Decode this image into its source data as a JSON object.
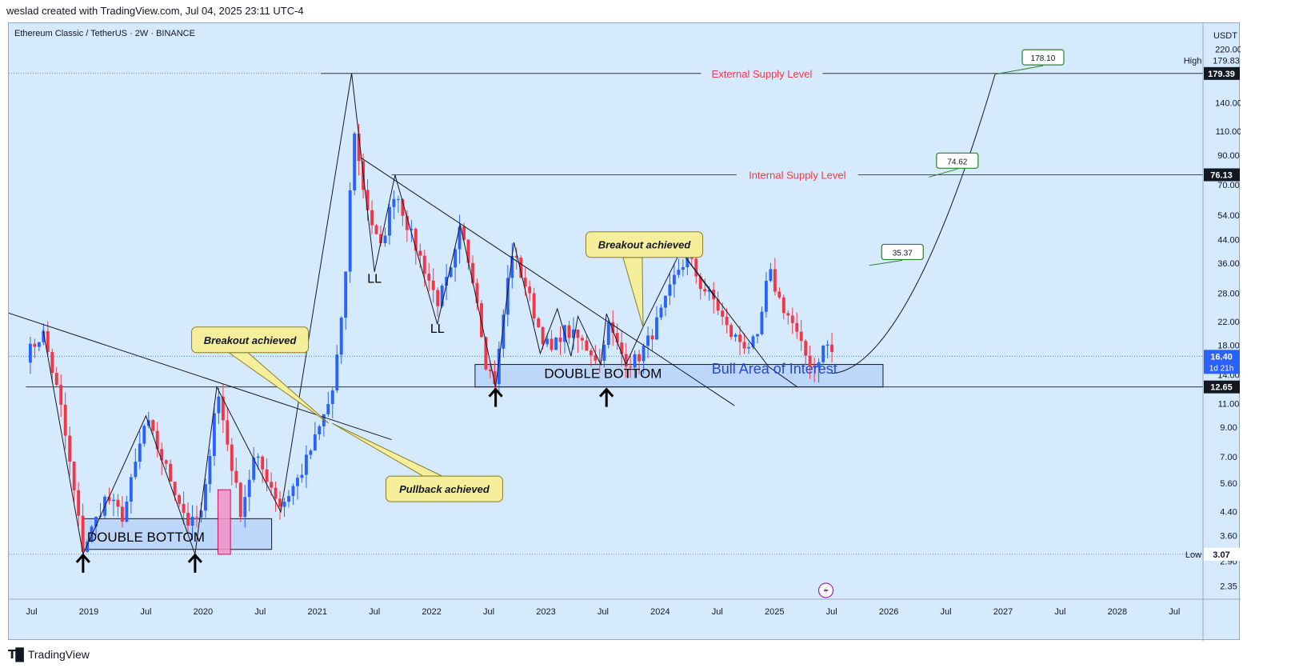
{
  "header": {
    "attribution": "weslad created with TradingView.com, Jul 04, 2025 23:11 UTC-4"
  },
  "footer": {
    "brand": "TradingView",
    "logo_icon": "tradingview-logo-icon"
  },
  "chart_data": {
    "type": "candlestick",
    "symbol_line": "Ethereum Classic / TetherUS · 2W · BINANCE",
    "currency": "USDT",
    "y_scale": "log",
    "ylim": [
      2.1,
      260
    ],
    "xlim": [
      2018.3,
      2028.75
    ],
    "price_ticks": [
      220,
      140,
      110,
      90,
      70,
      54,
      44,
      36,
      28,
      22,
      18,
      14,
      11,
      9,
      7,
      5.6,
      4.4,
      3.6,
      2.9,
      2.35
    ],
    "price_tick_labels": [
      "220.00",
      "140.00",
      "110.00",
      "90.00",
      "70.00",
      "54.00",
      "44.00",
      "36.00",
      "28.00",
      "22.00",
      "18.00",
      "14.00",
      "11.00",
      "9.00",
      "7.00",
      "5.60",
      "4.40",
      "3.60",
      "2.90",
      "2.35"
    ],
    "time_ticks": [
      {
        "label": "Jul",
        "t": 2018.5
      },
      {
        "label": "2019",
        "t": 2019.0
      },
      {
        "label": "Jul",
        "t": 2019.5
      },
      {
        "label": "2020",
        "t": 2020.0
      },
      {
        "label": "Jul",
        "t": 2020.5
      },
      {
        "label": "2021",
        "t": 2021.0
      },
      {
        "label": "Jul",
        "t": 2021.5
      },
      {
        "label": "2022",
        "t": 2022.0
      },
      {
        "label": "Jul",
        "t": 2022.5
      },
      {
        "label": "2023",
        "t": 2023.0
      },
      {
        "label": "Jul",
        "t": 2023.5
      },
      {
        "label": "2024",
        "t": 2024.0
      },
      {
        "label": "Jul",
        "t": 2024.5
      },
      {
        "label": "2025",
        "t": 2025.0
      },
      {
        "label": "Jul",
        "t": 2025.5
      },
      {
        "label": "2026",
        "t": 2026.0
      },
      {
        "label": "Jul",
        "t": 2026.5
      },
      {
        "label": "2027",
        "t": 2027.0
      },
      {
        "label": "Jul",
        "t": 2027.5
      },
      {
        "label": "2028",
        "t": 2028.0
      },
      {
        "label": "Jul",
        "t": 2028.5
      }
    ],
    "price_markers": {
      "high": {
        "label": "High",
        "value": 179.83,
        "text": "179.83"
      },
      "low": {
        "label": "Low",
        "value": 3.07,
        "text": "3.07"
      },
      "last": {
        "value": 16.4,
        "text": "16.40",
        "countdown": "1d 21h",
        "color": "#2962ff"
      },
      "level_179": {
        "value": 179.39,
        "text": "179.39"
      },
      "level_76": {
        "value": 76.13,
        "text": "76.13"
      },
      "level_12": {
        "value": 12.65,
        "text": "12.65"
      }
    },
    "levels": [
      {
        "name": "External Supply Level",
        "value": 179.39,
        "from": 2021.03,
        "color": "#f23645"
      },
      {
        "name": "Internal Supply Level",
        "value": 76.13,
        "from": 2021.65,
        "color": "#f23645"
      }
    ],
    "colors": {
      "up": "#2962ff",
      "down": "#f23645",
      "background": "#d6eafd",
      "zone": "#a9c7f7",
      "pink": "#f48fc8"
    },
    "anchors": [
      [
        2018.45,
        16.5
      ],
      [
        2018.6,
        20.0
      ],
      [
        2018.75,
        11.0
      ],
      [
        2018.95,
        3.2
      ],
      [
        2019.15,
        5.0
      ],
      [
        2019.3,
        4.2
      ],
      [
        2019.5,
        9.6
      ],
      [
        2019.7,
        6.0
      ],
      [
        2019.88,
        3.9
      ],
      [
        2020.0,
        4.4
      ],
      [
        2020.12,
        12.6
      ],
      [
        2020.25,
        6.5
      ],
      [
        2020.33,
        4.4
      ],
      [
        2020.45,
        7.0
      ],
      [
        2020.55,
        6.0
      ],
      [
        2020.68,
        4.6
      ],
      [
        2020.85,
        6.0
      ],
      [
        2021.0,
        8.5
      ],
      [
        2021.13,
        12.0
      ],
      [
        2021.23,
        25.0
      ],
      [
        2021.32,
        115.0
      ],
      [
        2021.38,
        75.0
      ],
      [
        2021.45,
        55.0
      ],
      [
        2021.55,
        40.0
      ],
      [
        2021.68,
        68.0
      ],
      [
        2021.8,
        48.0
      ],
      [
        2021.92,
        36.0
      ],
      [
        2022.05,
        26.0
      ],
      [
        2022.18,
        34.0
      ],
      [
        2022.25,
        48.0
      ],
      [
        2022.38,
        30.0
      ],
      [
        2022.48,
        15.0
      ],
      [
        2022.56,
        13.2
      ],
      [
        2022.62,
        22.0
      ],
      [
        2022.7,
        40.0
      ],
      [
        2022.82,
        30.0
      ],
      [
        2022.95,
        20.0
      ],
      [
        2023.05,
        17.0
      ],
      [
        2023.15,
        20.5
      ],
      [
        2023.28,
        19.0
      ],
      [
        2023.4,
        17.0
      ],
      [
        2023.48,
        15.5
      ],
      [
        2023.53,
        22.0
      ],
      [
        2023.65,
        17.0
      ],
      [
        2023.72,
        15.5
      ],
      [
        2023.8,
        16.0
      ],
      [
        2023.92,
        19.5
      ],
      [
        2024.05,
        26.0
      ],
      [
        2024.15,
        34.0
      ],
      [
        2024.25,
        38.0
      ],
      [
        2024.35,
        30.0
      ],
      [
        2024.48,
        26.0
      ],
      [
        2024.6,
        20.0
      ],
      [
        2024.75,
        18.0
      ],
      [
        2024.85,
        18.5
      ],
      [
        2024.95,
        34.0
      ],
      [
        2025.05,
        26.0
      ],
      [
        2025.15,
        22.0
      ],
      [
        2025.25,
        17.0
      ],
      [
        2025.35,
        15.0
      ],
      [
        2025.45,
        18.5
      ],
      [
        2025.52,
        16.4
      ]
    ],
    "annotations": {
      "callouts": [
        {
          "text": "Breakout achieved",
          "t": 2019.9,
          "p": 21.0,
          "tip_t": 2021.1,
          "tip_p": 9.3
        },
        {
          "text": "Pullback achieved",
          "t": 2021.6,
          "p": 5.95,
          "tip_t": 2021.13,
          "tip_p": 9.3
        },
        {
          "text": "Breakout achieved",
          "t": 2023.35,
          "p": 47.0,
          "tip_t": 2023.85,
          "tip_p": 21.0
        }
      ],
      "text_labels": [
        {
          "text": "DOUBLE BOTTOM",
          "t": 2019.5,
          "p": 3.42,
          "size": 17,
          "color": "#000000"
        },
        {
          "text": "DOUBLE BOTTOM",
          "t": 2023.5,
          "p": 13.65,
          "size": 17,
          "color": "#000000"
        },
        {
          "text": "Bull Area of Interest",
          "t": 2025.0,
          "p": 14.15,
          "size": 18,
          "color": "#2947d6"
        },
        {
          "text": "LL",
          "t": 2021.5,
          "p": 30.5,
          "size": 16,
          "color": "#000000"
        },
        {
          "text": "LL",
          "t": 2022.05,
          "p": 20.0,
          "size": 16,
          "color": "#000000"
        }
      ],
      "price_targets": [
        {
          "text": "35.37",
          "t": 2025.83,
          "p": 35.37,
          "label_t": 2026.12,
          "label_p": 39.5
        },
        {
          "text": "74.62",
          "t": 2026.35,
          "p": 74.62,
          "label_t": 2026.6,
          "label_p": 85.5
        },
        {
          "text": "178.10",
          "t": 2026.93,
          "p": 178.1,
          "label_t": 2027.35,
          "label_p": 205.0
        }
      ],
      "zones": [
        {
          "t0": 2018.95,
          "t1": 2020.6,
          "p0": 3.2,
          "p1": 4.15
        },
        {
          "t0": 2022.38,
          "t1": 2025.95,
          "p0": 12.65,
          "p1": 15.3
        }
      ],
      "arrows": [
        [
          2018.95,
          3.05
        ],
        [
          2019.93,
          3.05
        ],
        [
          2022.56,
          12.4
        ],
        [
          2023.53,
          12.4
        ]
      ]
    }
  }
}
